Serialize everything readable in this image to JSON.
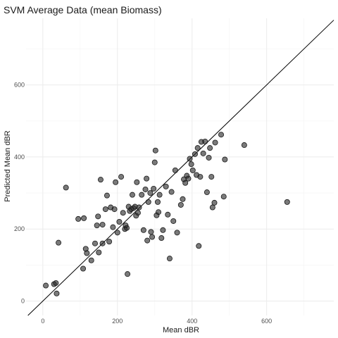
{
  "chart_data": {
    "type": "scatter",
    "title": "SVM Average Data (mean Biomass)",
    "xlabel": "Mean dBR",
    "ylabel": "Predicted Mean dBR",
    "xlim": [
      -45,
      780
    ],
    "ylim": [
      -40,
      785
    ],
    "x_ticks": [
      0,
      200,
      400,
      600
    ],
    "y_ticks": [
      0,
      200,
      400,
      600
    ],
    "grid": true,
    "reference_line": {
      "slope": 1,
      "intercept": 0
    },
    "points": [
      {
        "x": 8,
        "y": 43
      },
      {
        "x": 30,
        "y": 47
      },
      {
        "x": 35,
        "y": 50
      },
      {
        "x": 37,
        "y": 21
      },
      {
        "x": 42,
        "y": 162
      },
      {
        "x": 62,
        "y": 315
      },
      {
        "x": 95,
        "y": 228
      },
      {
        "x": 108,
        "y": 90
      },
      {
        "x": 110,
        "y": 230
      },
      {
        "x": 115,
        "y": 145
      },
      {
        "x": 118,
        "y": 133
      },
      {
        "x": 130,
        "y": 113
      },
      {
        "x": 140,
        "y": 160
      },
      {
        "x": 145,
        "y": 210
      },
      {
        "x": 148,
        "y": 235
      },
      {
        "x": 150,
        "y": 135
      },
      {
        "x": 155,
        "y": 337
      },
      {
        "x": 160,
        "y": 160
      },
      {
        "x": 160,
        "y": 212
      },
      {
        "x": 168,
        "y": 255
      },
      {
        "x": 172,
        "y": 293
      },
      {
        "x": 178,
        "y": 165
      },
      {
        "x": 182,
        "y": 260
      },
      {
        "x": 188,
        "y": 205
      },
      {
        "x": 192,
        "y": 255
      },
      {
        "x": 195,
        "y": 330
      },
      {
        "x": 200,
        "y": 190
      },
      {
        "x": 205,
        "y": 220
      },
      {
        "x": 210,
        "y": 345
      },
      {
        "x": 215,
        "y": 245
      },
      {
        "x": 220,
        "y": 200
      },
      {
        "x": 222,
        "y": 210
      },
      {
        "x": 225,
        "y": 203
      },
      {
        "x": 227,
        "y": 75
      },
      {
        "x": 230,
        "y": 262
      },
      {
        "x": 233,
        "y": 250
      },
      {
        "x": 237,
        "y": 255
      },
      {
        "x": 240,
        "y": 295
      },
      {
        "x": 243,
        "y": 258
      },
      {
        "x": 247,
        "y": 262
      },
      {
        "x": 250,
        "y": 237
      },
      {
        "x": 252,
        "y": 330
      },
      {
        "x": 255,
        "y": 245
      },
      {
        "x": 258,
        "y": 260
      },
      {
        "x": 265,
        "y": 295
      },
      {
        "x": 270,
        "y": 197
      },
      {
        "x": 275,
        "y": 310
      },
      {
        "x": 278,
        "y": 340
      },
      {
        "x": 280,
        "y": 168
      },
      {
        "x": 283,
        "y": 275
      },
      {
        "x": 288,
        "y": 300
      },
      {
        "x": 290,
        "y": 192
      },
      {
        "x": 293,
        "y": 178
      },
      {
        "x": 297,
        "y": 312
      },
      {
        "x": 300,
        "y": 385
      },
      {
        "x": 302,
        "y": 418
      },
      {
        "x": 305,
        "y": 238
      },
      {
        "x": 308,
        "y": 275
      },
      {
        "x": 310,
        "y": 247
      },
      {
        "x": 313,
        "y": 295
      },
      {
        "x": 318,
        "y": 175
      },
      {
        "x": 322,
        "y": 197
      },
      {
        "x": 330,
        "y": 318
      },
      {
        "x": 335,
        "y": 240
      },
      {
        "x": 340,
        "y": 118
      },
      {
        "x": 345,
        "y": 303
      },
      {
        "x": 350,
        "y": 222
      },
      {
        "x": 355,
        "y": 363
      },
      {
        "x": 360,
        "y": 190
      },
      {
        "x": 370,
        "y": 267
      },
      {
        "x": 375,
        "y": 283
      },
      {
        "x": 378,
        "y": 338
      },
      {
        "x": 382,
        "y": 328
      },
      {
        "x": 386,
        "y": 348
      },
      {
        "x": 390,
        "y": 340
      },
      {
        "x": 394,
        "y": 395
      },
      {
        "x": 398,
        "y": 380
      },
      {
        "x": 402,
        "y": 363
      },
      {
        "x": 408,
        "y": 408
      },
      {
        "x": 412,
        "y": 350
      },
      {
        "x": 415,
        "y": 425
      },
      {
        "x": 418,
        "y": 153
      },
      {
        "x": 422,
        "y": 345
      },
      {
        "x": 425,
        "y": 442
      },
      {
        "x": 430,
        "y": 410
      },
      {
        "x": 435,
        "y": 443
      },
      {
        "x": 440,
        "y": 302
      },
      {
        "x": 445,
        "y": 398
      },
      {
        "x": 448,
        "y": 425
      },
      {
        "x": 452,
        "y": 345
      },
      {
        "x": 455,
        "y": 260
      },
      {
        "x": 460,
        "y": 273
      },
      {
        "x": 462,
        "y": 440
      },
      {
        "x": 478,
        "y": 462
      },
      {
        "x": 485,
        "y": 290
      },
      {
        "x": 488,
        "y": 393
      },
      {
        "x": 540,
        "y": 433
      },
      {
        "x": 655,
        "y": 275
      }
    ]
  }
}
